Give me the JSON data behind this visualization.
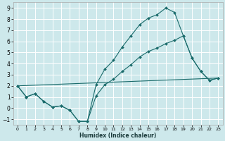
{
  "xlabel": "Humidex (Indice chaleur)",
  "background_color": "#cde8eb",
  "grid_color": "#b0d4d8",
  "line_color": "#1a6b6b",
  "xlim": [
    -0.5,
    23.5
  ],
  "ylim": [
    -1.5,
    9.5
  ],
  "xticks": [
    0,
    1,
    2,
    3,
    4,
    5,
    6,
    7,
    8,
    9,
    10,
    11,
    12,
    13,
    14,
    15,
    16,
    17,
    18,
    19,
    20,
    21,
    22,
    23
  ],
  "yticks": [
    -1,
    0,
    1,
    2,
    3,
    4,
    5,
    6,
    7,
    8,
    9
  ],
  "line1_x": [
    0,
    1,
    2,
    3,
    4,
    5,
    6,
    7,
    8,
    9,
    10,
    11,
    12,
    13,
    14,
    15,
    16,
    17,
    18,
    19,
    20,
    21,
    22,
    23
  ],
  "line1_y": [
    2.0,
    1.0,
    1.3,
    0.6,
    0.1,
    0.2,
    -0.2,
    -1.2,
    -1.2,
    2.1,
    3.5,
    4.3,
    5.5,
    6.5,
    7.5,
    8.1,
    8.4,
    9.0,
    8.6,
    6.5,
    4.5,
    3.3,
    2.5,
    2.7
  ],
  "line2_x": [
    0,
    1,
    2,
    3,
    4,
    5,
    6,
    7,
    8,
    9,
    10,
    11,
    12,
    13,
    14,
    15,
    16,
    17,
    18,
    19,
    20,
    21,
    22,
    23
  ],
  "line2_y": [
    2.0,
    1.0,
    1.3,
    0.6,
    0.1,
    0.2,
    -0.2,
    -1.2,
    -1.2,
    1.1,
    2.1,
    2.6,
    3.3,
    3.9,
    4.6,
    5.1,
    5.4,
    5.8,
    6.1,
    6.5,
    4.5,
    3.3,
    2.5,
    2.7
  ],
  "line3_x": [
    0,
    23
  ],
  "line3_y": [
    2.0,
    2.7
  ]
}
